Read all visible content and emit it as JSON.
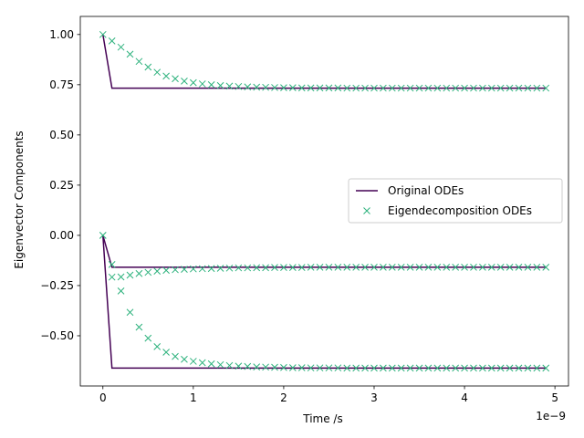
{
  "chart_data": {
    "type": "line",
    "title": "",
    "xlabel": "Time /s",
    "ylabel": "Eigenvector Components",
    "x_offset_label": "1e−9",
    "xlim": [
      -0.25,
      5.15
    ],
    "ylim": [
      -0.75,
      1.09
    ],
    "x_ticks": [
      0,
      1,
      2,
      3,
      4,
      5
    ],
    "x_tick_labels": [
      "0",
      "1",
      "2",
      "3",
      "4",
      "5"
    ],
    "y_ticks": [
      1.0,
      0.75,
      0.5,
      0.25,
      0.0,
      -0.25,
      -0.5
    ],
    "y_tick_labels": [
      "1.00",
      "0.75",
      "0.50",
      "0.25",
      "0.00",
      "−0.25",
      "−0.50"
    ],
    "grid": false,
    "legend_position": "center-right",
    "legend": [
      {
        "label": "Original ODEs",
        "marker": "line",
        "color": "#440154"
      },
      {
        "label": "Eigendecomposition ODEs",
        "marker": "x",
        "color": "#2db27d"
      }
    ],
    "series": [
      {
        "group": "Original ODEs",
        "style": "line",
        "color": "#440154",
        "x": [
          0,
          0.1,
          4.9
        ],
        "y": [
          1.0,
          0.733,
          0.733
        ]
      },
      {
        "group": "Original ODEs",
        "style": "line",
        "color": "#440154",
        "x": [
          0,
          0.1,
          4.9
        ],
        "y": [
          0.0,
          -0.159,
          -0.159
        ]
      },
      {
        "group": "Original ODEs",
        "style": "line",
        "color": "#440154",
        "x": [
          0,
          0.1,
          4.9
        ],
        "y": [
          0.0,
          -0.661,
          -0.661
        ]
      },
      {
        "group": "Eigendecomposition ODEs",
        "style": "marker",
        "color": "#2db27d",
        "x": [
          0,
          0.1,
          0.2,
          0.3,
          0.4,
          0.5,
          0.6,
          0.7,
          0.8,
          0.9,
          1.0,
          1.1,
          1.2,
          1.3,
          1.4,
          1.5,
          1.6,
          1.7,
          1.8,
          1.9,
          2.0,
          2.1,
          2.2,
          2.3,
          2.4,
          2.5,
          2.6,
          2.7,
          2.8,
          2.9,
          3.0,
          3.1,
          3.2,
          3.3,
          3.4,
          3.5,
          3.6,
          3.7,
          3.8,
          3.9,
          4.0,
          4.1,
          4.2,
          4.3,
          4.4,
          4.5,
          4.6,
          4.7,
          4.8,
          4.9
        ],
        "y": [
          1.0,
          0.968,
          0.937,
          0.902,
          0.866,
          0.838,
          0.812,
          0.793,
          0.78,
          0.768,
          0.76,
          0.754,
          0.75,
          0.746,
          0.743,
          0.741,
          0.739,
          0.738,
          0.737,
          0.736,
          0.735,
          0.735,
          0.734,
          0.734,
          0.734,
          0.734,
          0.734,
          0.733,
          0.733,
          0.733,
          0.733,
          0.733,
          0.733,
          0.733,
          0.733,
          0.733,
          0.733,
          0.733,
          0.733,
          0.733,
          0.733,
          0.733,
          0.733,
          0.733,
          0.733,
          0.733,
          0.733,
          0.733,
          0.733,
          0.733
        ]
      },
      {
        "group": "Eigendecomposition ODEs",
        "style": "marker",
        "color": "#2db27d",
        "x": [
          0,
          0.1,
          0.2,
          0.3,
          0.4,
          0.5,
          0.6,
          0.7,
          0.8,
          0.9,
          1.0,
          1.1,
          1.2,
          1.3,
          1.4,
          1.5,
          1.6,
          1.7,
          1.8,
          1.9,
          2.0,
          2.1,
          2.2,
          2.3,
          2.4,
          2.5,
          2.6,
          2.7,
          2.8,
          2.9,
          3.0,
          3.1,
          3.2,
          3.3,
          3.4,
          3.5,
          3.6,
          3.7,
          3.8,
          3.9,
          4.0,
          4.1,
          4.2,
          4.3,
          4.4,
          4.5,
          4.6,
          4.7,
          4.8,
          4.9
        ],
        "y": [
          0.0,
          -0.208,
          -0.207,
          -0.198,
          -0.19,
          -0.184,
          -0.178,
          -0.174,
          -0.171,
          -0.169,
          -0.167,
          -0.166,
          -0.165,
          -0.164,
          -0.163,
          -0.162,
          -0.162,
          -0.161,
          -0.161,
          -0.16,
          -0.16,
          -0.16,
          -0.16,
          -0.159,
          -0.159,
          -0.159,
          -0.159,
          -0.159,
          -0.159,
          -0.159,
          -0.159,
          -0.159,
          -0.159,
          -0.159,
          -0.159,
          -0.159,
          -0.159,
          -0.159,
          -0.159,
          -0.159,
          -0.159,
          -0.159,
          -0.159,
          -0.159,
          -0.159,
          -0.159,
          -0.159,
          -0.159,
          -0.159,
          -0.159
        ]
      },
      {
        "group": "Eigendecomposition ODEs",
        "style": "marker",
        "color": "#2db27d",
        "x": [
          0,
          0.1,
          0.2,
          0.3,
          0.4,
          0.5,
          0.6,
          0.7,
          0.8,
          0.9,
          1.0,
          1.1,
          1.2,
          1.3,
          1.4,
          1.5,
          1.6,
          1.7,
          1.8,
          1.9,
          2.0,
          2.1,
          2.2,
          2.3,
          2.4,
          2.5,
          2.6,
          2.7,
          2.8,
          2.9,
          3.0,
          3.1,
          3.2,
          3.3,
          3.4,
          3.5,
          3.6,
          3.7,
          3.8,
          3.9,
          4.0,
          4.1,
          4.2,
          4.3,
          4.4,
          4.5,
          4.6,
          4.7,
          4.8,
          4.9
        ],
        "y": [
          0.0,
          -0.145,
          -0.277,
          -0.383,
          -0.457,
          -0.512,
          -0.554,
          -0.582,
          -0.603,
          -0.617,
          -0.627,
          -0.634,
          -0.64,
          -0.644,
          -0.648,
          -0.651,
          -0.653,
          -0.655,
          -0.656,
          -0.657,
          -0.658,
          -0.659,
          -0.659,
          -0.66,
          -0.66,
          -0.66,
          -0.66,
          -0.661,
          -0.661,
          -0.661,
          -0.661,
          -0.661,
          -0.661,
          -0.661,
          -0.661,
          -0.661,
          -0.661,
          -0.661,
          -0.661,
          -0.661,
          -0.661,
          -0.661,
          -0.661,
          -0.661,
          -0.661,
          -0.661,
          -0.661,
          -0.661,
          -0.661,
          -0.661
        ]
      }
    ]
  }
}
